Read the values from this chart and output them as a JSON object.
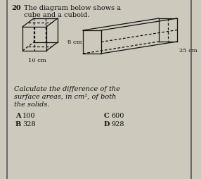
{
  "question_number": "20",
  "title_line1": "The diagram below shows a",
  "title_line2": "cube and a cuboid.",
  "question_text_line1": "Calculate the difference of the",
  "question_text_line2": "surface areas, in cm², of both",
  "question_text_line3": "the solids.",
  "cube_label": "10 cm",
  "cuboid_height_label": "8 cm",
  "cuboid_length_label": "25 cm",
  "options": [
    {
      "letter": "A",
      "value": "100"
    },
    {
      "letter": "B",
      "value": "328"
    },
    {
      "letter": "C",
      "value": "600"
    },
    {
      "letter": "D",
      "value": "928"
    }
  ],
  "bg_color": "#cdc9bc",
  "text_color": "#111111",
  "line_color": "#111111",
  "border_color": "#555555",
  "fig_width": 2.86,
  "fig_height": 2.54,
  "dpi": 100
}
